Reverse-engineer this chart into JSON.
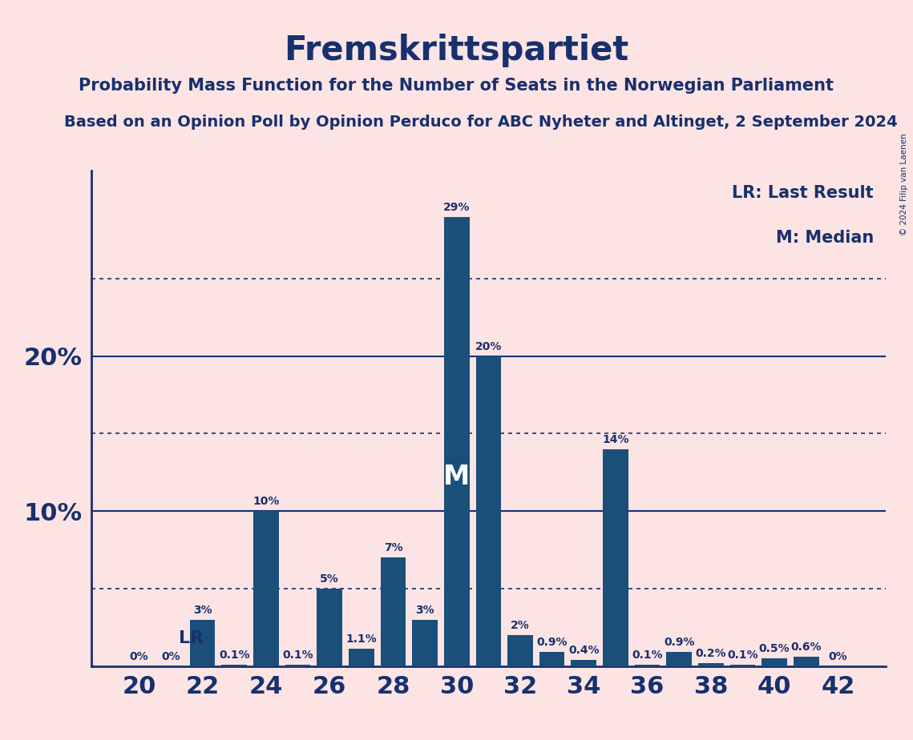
{
  "title": "Fremskrittspartiet",
  "subtitle1": "Probability Mass Function for the Number of Seats in the Norwegian Parliament",
  "subtitle2": "Based on an Opinion Poll by Opinion Perduco for ABC Nyheter and Altinget, 2 September 2024",
  "copyright": "© 2024 Filip van Laenen",
  "seats": [
    20,
    21,
    22,
    23,
    24,
    25,
    26,
    27,
    28,
    29,
    30,
    31,
    32,
    33,
    34,
    35,
    36,
    37,
    38,
    39,
    40,
    41,
    42
  ],
  "probabilities": [
    0.0,
    0.0,
    3.0,
    0.1,
    10.0,
    0.1,
    5.0,
    1.1,
    7.0,
    3.0,
    29.0,
    20.0,
    2.0,
    0.9,
    0.4,
    14.0,
    0.1,
    0.9,
    0.2,
    0.1,
    0.5,
    0.6,
    0.0
  ],
  "bar_color": "#1a4f7a",
  "background_color": "#fce4e4",
  "text_color": "#17306e",
  "lr_seat": 22,
  "median_seat": 30,
  "dotted_lines": [
    5.0,
    15.0,
    25.0
  ],
  "solid_lines": [
    10.0,
    20.0
  ],
  "label_map": {
    "20": "0%",
    "21": "0%",
    "22": "3%",
    "23": "0.1%",
    "24": "10%",
    "25": "0.1%",
    "26": "5%",
    "27": "1.1%",
    "28": "7%",
    "29": "3%",
    "30": "29%",
    "31": "20%",
    "32": "2%",
    "33": "0.9%",
    "34": "0.4%",
    "35": "14%",
    "36": "0.1%",
    "37": "0.9%",
    "38": "0.2%",
    "39": "0.1%",
    "40": "0.5%",
    "41": "0.6%",
    "42": "0%"
  }
}
